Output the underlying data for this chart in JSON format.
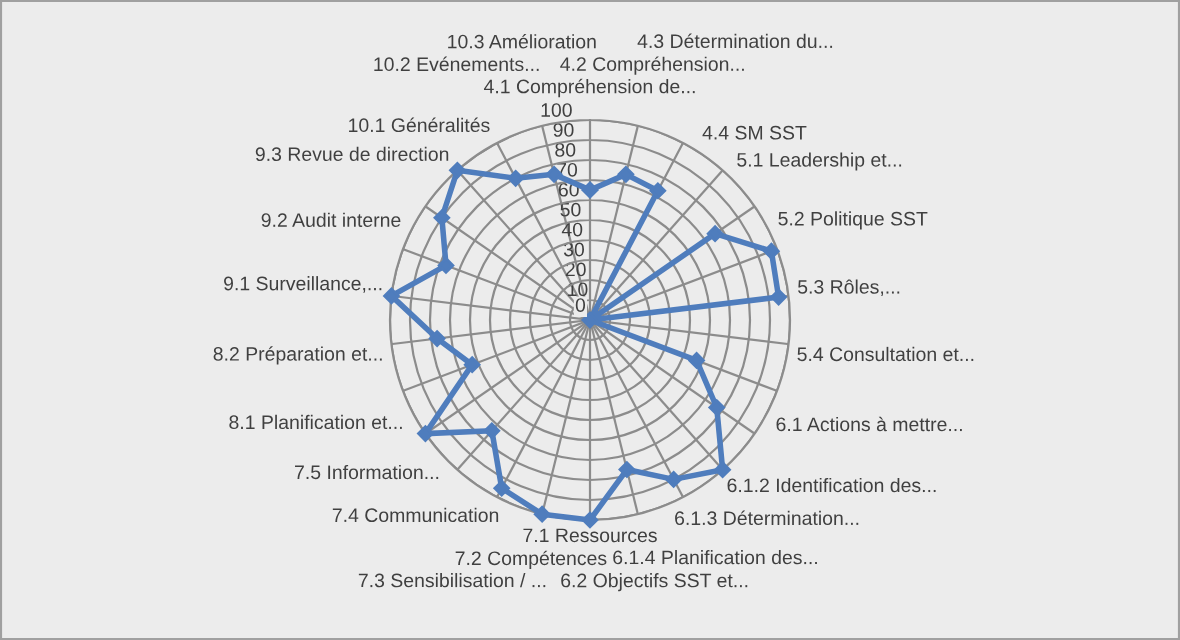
{
  "chart_data": {
    "type": "radar",
    "categories": [
      "4.1 Compréhension de...",
      "4.2 Compréhension...",
      "4.3 Détermination du...",
      "4.4 SM SST",
      "5.1 Leadership et...",
      "5.2 Politique SST",
      "5.3 Rôles,...",
      "5.4 Consultation et...",
      "6.1 Actions à mettre...",
      "6.1.2 Identification des...",
      "6.1.3 Détermination...",
      "6.1.4 Planification des...",
      "6.2 Objectifs SST et...",
      "7.1 Ressources",
      "7.2 Compétences",
      "7.3 Sensibilisation / ...",
      "7.4 Communication",
      "7.5 Information...",
      "8.1 Planification et...",
      "8.2 Préparation et...",
      "9.1 Surveillance,...",
      "9.2 Audit interne",
      "9.3 Revue de direction",
      "10.1 Généralités",
      "10.2 Evénements...",
      "10.3 Amélioration"
    ],
    "series": [
      {
        "color": "#4f7dbd",
        "values": [
          65,
          75,
          73,
          0,
          76,
          97,
          95,
          0,
          57,
          77,
          100,
          90,
          77,
          100,
          100,
          95,
          74,
          100,
          63,
          77,
          100,
          77,
          90,
          100,
          80,
          75
        ]
      }
    ],
    "ylim": [
      0,
      100
    ],
    "yticks": [
      0,
      10,
      20,
      30,
      40,
      50,
      60,
      70,
      80,
      90,
      100
    ],
    "marker": "diamond",
    "grid": true
  }
}
